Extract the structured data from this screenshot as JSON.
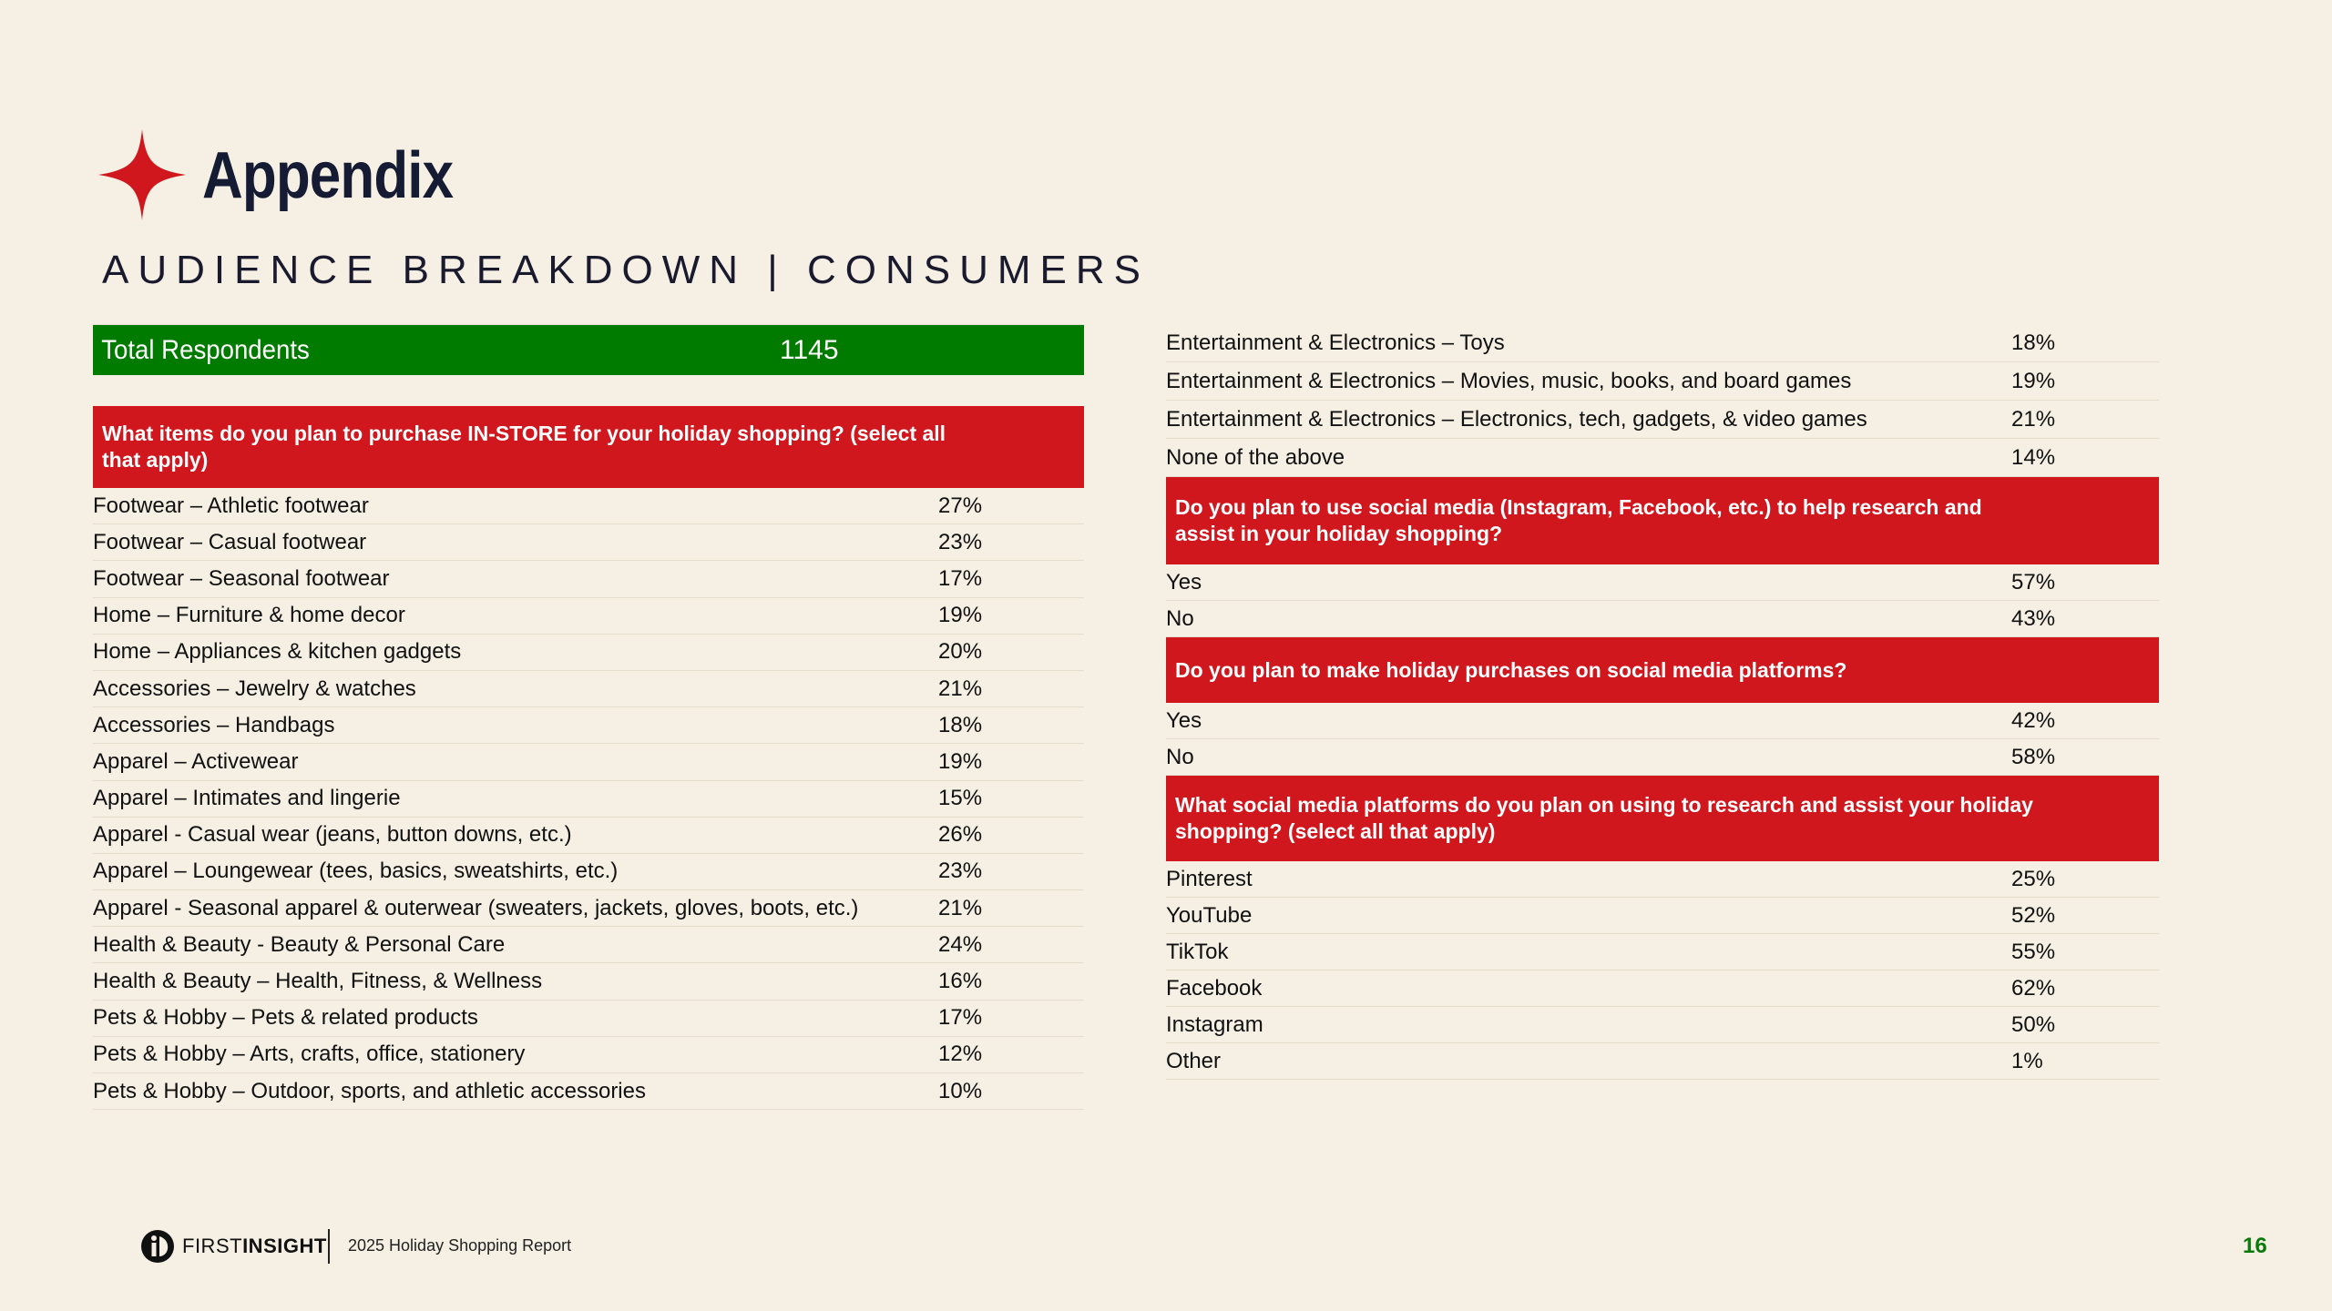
{
  "header": {
    "title": "Appendix",
    "subtitle": "AUDIENCE BREAKDOWN | CONSUMERS"
  },
  "total": {
    "label": "Total Respondents",
    "value": "1145"
  },
  "left": {
    "question": "What items do you plan to purchase IN-STORE for your holiday shopping? (select all that apply)",
    "rows": [
      {
        "label": "Footwear – Athletic footwear",
        "value": "27%"
      },
      {
        "label": "Footwear – Casual footwear",
        "value": "23%"
      },
      {
        "label": "Footwear – Seasonal footwear",
        "value": "17%"
      },
      {
        "label": "Home – Furniture & home decor",
        "value": "19%"
      },
      {
        "label": "Home – Appliances & kitchen gadgets",
        "value": "20%"
      },
      {
        "label": "Accessories – Jewelry & watches",
        "value": "21%"
      },
      {
        "label": "Accessories – Handbags",
        "value": "18%"
      },
      {
        "label": "Apparel – Activewear",
        "value": "19%"
      },
      {
        "label": "Apparel – Intimates and lingerie",
        "value": "15%"
      },
      {
        "label": "Apparel - Casual wear (jeans, button downs, etc.)",
        "value": "26%"
      },
      {
        "label": "Apparel – Loungewear (tees, basics, sweatshirts, etc.)",
        "value": "23%"
      },
      {
        "label": "Apparel - Seasonal apparel & outerwear (sweaters, jackets, gloves, boots, etc.)",
        "value": "21%"
      },
      {
        "label": "Health & Beauty - Beauty & Personal Care",
        "value": "24%"
      },
      {
        "label": "Health & Beauty – Health, Fitness, & Wellness",
        "value": "16%"
      },
      {
        "label": "Pets & Hobby – Pets & related products",
        "value": "17%"
      },
      {
        "label": "Pets & Hobby – Arts, crafts, office, stationery",
        "value": "12%"
      },
      {
        "label": "Pets & Hobby – Outdoor, sports, and athletic accessories",
        "value": "10%"
      }
    ]
  },
  "right": {
    "continued_rows": [
      {
        "label": "Entertainment & Electronics – Toys",
        "value": "18%"
      },
      {
        "label": "Entertainment & Electronics – Movies, music, books, and board games",
        "value": "19%"
      },
      {
        "label": "Entertainment & Electronics – Electronics, tech, gadgets, & video games",
        "value": "21%"
      },
      {
        "label": "None of the above",
        "value": "14%"
      }
    ],
    "q1": {
      "question": "Do you plan to use social media (Instagram, Facebook, etc.) to help research and assist in your holiday shopping?",
      "rows": [
        {
          "label": "Yes",
          "value": "57%"
        },
        {
          "label": "No",
          "value": "43%"
        }
      ]
    },
    "q2": {
      "question": "Do you plan to make holiday purchases on social media platforms?",
      "rows": [
        {
          "label": "Yes",
          "value": "42%"
        },
        {
          "label": "No",
          "value": "58%"
        }
      ]
    },
    "q3": {
      "question": "What social media platforms do you plan on using to research and assist your holiday shopping? (select all that apply)",
      "rows": [
        {
          "label": "Pinterest",
          "value": "25%"
        },
        {
          "label": "YouTube",
          "value": "52%"
        },
        {
          "label": "TikTok",
          "value": "55%"
        },
        {
          "label": "Facebook",
          "value": "62%"
        },
        {
          "label": "Instagram",
          "value": "50%"
        },
        {
          "label": "Other",
          "value": "1%"
        }
      ]
    }
  },
  "footer": {
    "logo_first": "FIRST",
    "logo_second": "INSIGHT",
    "report": "2025 Holiday Shopping Report",
    "page": "16"
  },
  "colors": {
    "background": "#f5efe4",
    "accent_red": "#d0171e",
    "accent_green": "#007b00",
    "title_navy": "#141b33"
  },
  "icons": {
    "title": "four-point-star-icon",
    "logo": "first-insight-logo-icon"
  }
}
